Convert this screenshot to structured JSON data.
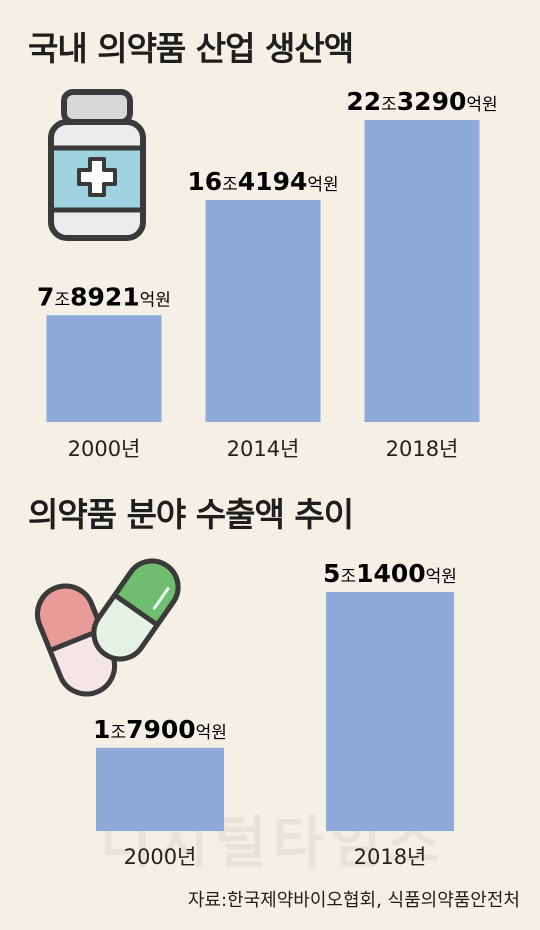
{
  "chart_data": [
    {
      "type": "bar",
      "title": "국내 의약품 산업 생산액",
      "categories": [
        "2000년",
        "2014년",
        "2018년"
      ],
      "values": [
        78921,
        164194,
        223290
      ],
      "value_labels": [
        {
          "jo": "7",
          "jo_unit": "조",
          "eok": "8921",
          "eok_unit": "억원"
        },
        {
          "jo": "16",
          "jo_unit": "조",
          "eok": "4194",
          "eok_unit": "억원"
        },
        {
          "jo": "22",
          "jo_unit": "조",
          "eok": "3290",
          "eok_unit": "억원"
        }
      ],
      "bar_color": "#8eaad8"
    },
    {
      "type": "bar",
      "title": "의약품 분야 수출액 추이",
      "categories": [
        "2000년",
        "2018년"
      ],
      "values": [
        17900,
        51400
      ],
      "value_labels": [
        {
          "jo": "1",
          "jo_unit": "조",
          "eok": "7900",
          "eok_unit": "억원"
        },
        {
          "jo": "5",
          "jo_unit": "조",
          "eok": "1400",
          "eok_unit": "억원"
        }
      ],
      "bar_color": "#8eaad8"
    }
  ],
  "icons": [
    "medicine-bottle-icon",
    "capsule-pills-icon"
  ],
  "source": "자료:한국제약바이오협회, 식품의약품안전처",
  "watermark": "디지털타임스"
}
